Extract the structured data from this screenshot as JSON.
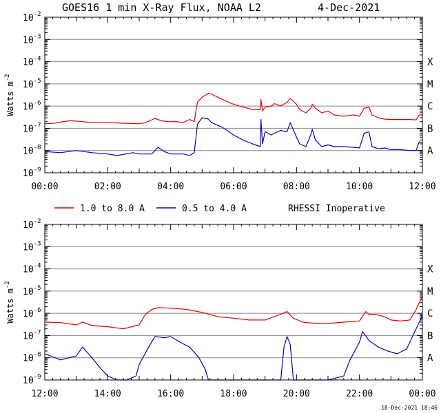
{
  "title": {
    "instrument": "GOES16 1 min X-Ray Flux, NOAA L2",
    "date": "4-Dec-2021"
  },
  "legend": {
    "long_label": "1.0 to 8.0 A",
    "short_label": "0.5 to 4.0 A",
    "note": "RHESSI Inoperative"
  },
  "footer_timestamp": "18-Dec-2021 18:46",
  "colors": {
    "long": "#dd0000",
    "short": "#0000cc",
    "grid": "#888888",
    "axes": "#000000",
    "background": "#ffffff"
  },
  "chart_data": [
    {
      "type": "line",
      "ylabel": "Watts m-2",
      "ylabel_base": "Watts m",
      "ylabel_exp": "-2",
      "y_scale": "log",
      "ylim": [
        1e-09,
        0.01
      ],
      "y_tick_labels": [
        {
          "value": 0.01,
          "base": "10",
          "exp": "-2"
        },
        {
          "value": 0.001,
          "base": "10",
          "exp": "-3"
        },
        {
          "value": 0.0001,
          "base": "10",
          "exp": "-4"
        },
        {
          "value": 1e-05,
          "base": "10",
          "exp": "-5"
        },
        {
          "value": 1e-06,
          "base": "10",
          "exp": "-6"
        },
        {
          "value": 1e-07,
          "base": "10",
          "exp": "-7"
        },
        {
          "value": 1e-08,
          "base": "10",
          "exp": "-8"
        },
        {
          "value": 1e-09,
          "base": "10",
          "exp": "-9"
        }
      ],
      "flare_classes": [
        {
          "label": "X",
          "value": 0.0001
        },
        {
          "label": "M",
          "value": 1e-05
        },
        {
          "label": "C",
          "value": 1e-06
        },
        {
          "label": "B",
          "value": 1e-07
        },
        {
          "label": "A",
          "value": 1e-08
        }
      ],
      "xlim_hours": [
        0,
        12
      ],
      "x_tick_labels": [
        "00:00",
        "02:00",
        "04:00",
        "06:00",
        "08:00",
        "10:00",
        "12:00"
      ],
      "grid": true,
      "series": [
        {
          "name": "1.0 to 8.0 A",
          "color": "#dd0000",
          "x_hours": [
            0,
            0.3,
            0.5,
            0.8,
            1.2,
            1.5,
            2.0,
            2.5,
            3.0,
            3.2,
            3.5,
            3.7,
            3.9,
            4.2,
            4.4,
            4.6,
            4.75,
            4.85,
            5.0,
            5.2,
            5.3,
            5.5,
            5.8,
            6.0,
            6.3,
            6.6,
            6.85,
            6.87,
            6.92,
            7.0,
            7.2,
            7.3,
            7.5,
            7.7,
            7.8,
            8.0,
            8.1,
            8.3,
            8.45,
            8.5,
            8.6,
            8.8,
            9.0,
            9.2,
            9.5,
            9.8,
            10.0,
            10.15,
            10.3,
            10.4,
            10.6,
            10.8,
            11.0,
            11.3,
            11.6,
            11.8,
            11.9,
            12.0
          ],
          "y": [
            1.6e-07,
            1.7e-07,
            1.9e-07,
            2.2e-07,
            2e-07,
            1.8e-07,
            1.8e-07,
            1.7e-07,
            1.6e-07,
            1.8e-07,
            2.8e-07,
            2.2e-07,
            2e-07,
            2e-07,
            1.8e-07,
            2.5e-07,
            2e-07,
            1.5e-06,
            2.5e-06,
            3.8e-06,
            3.5e-06,
            2.5e-06,
            1.6e-06,
            1.2e-06,
            9e-07,
            7e-07,
            7e-07,
            2e-06,
            6e-07,
            9e-07,
            1e-06,
            1.3e-06,
            1e-06,
            1.5e-06,
            2.2e-06,
            1.2e-06,
            7e-07,
            5e-07,
            8e-07,
            1.2e-06,
            8e-07,
            5e-07,
            6e-07,
            4e-07,
            3.5e-07,
            4e-07,
            3.5e-07,
            8e-07,
            9e-07,
            4e-07,
            3e-07,
            2.6e-07,
            2.5e-07,
            2.5e-07,
            2.5e-07,
            2.4e-07,
            4e-07,
            4e-07
          ]
        },
        {
          "name": "0.5 to 4.0 A",
          "color": "#0000cc",
          "x_hours": [
            0,
            0.5,
            1.0,
            1.5,
            2.0,
            2.3,
            2.8,
            3.0,
            3.4,
            3.6,
            3.8,
            4.0,
            4.4,
            4.6,
            4.75,
            4.85,
            5.0,
            5.2,
            5.3,
            5.6,
            5.8,
            6.0,
            6.3,
            6.6,
            6.85,
            6.87,
            6.92,
            7.0,
            7.2,
            7.3,
            7.5,
            7.7,
            7.8,
            8.0,
            8.1,
            8.3,
            8.45,
            8.5,
            8.6,
            8.8,
            9.0,
            9.2,
            9.5,
            9.8,
            10.0,
            10.15,
            10.3,
            10.4,
            10.6,
            10.8,
            11.0,
            11.3,
            11.6,
            11.8,
            11.9,
            12.0
          ],
          "y": [
            9e-09,
            8e-09,
            1e-08,
            8e-09,
            7e-09,
            6e-09,
            8e-09,
            7e-09,
            7e-09,
            1.4e-08,
            9e-09,
            7e-09,
            7e-09,
            6e-09,
            8e-09,
            1.5e-07,
            3e-07,
            2.6e-07,
            1.8e-07,
            1.2e-07,
            8e-08,
            5e-08,
            3e-08,
            2e-08,
            1.5e-08,
            2.5e-07,
            2e-08,
            7e-08,
            5e-08,
            6e-08,
            8e-08,
            7e-08,
            1.8e-07,
            4e-08,
            2e-08,
            1.5e-08,
            5e-08,
            9e-08,
            3e-08,
            1.5e-08,
            1.8e-08,
            1.5e-08,
            1.5e-08,
            1.4e-08,
            1.3e-08,
            6e-08,
            7e-08,
            1.5e-08,
            1.2e-08,
            1.3e-08,
            1.1e-08,
            1.1e-08,
            1e-08,
            1e-08,
            2.5e-08,
            2.2e-08
          ]
        }
      ]
    },
    {
      "type": "line",
      "ylabel": "Watts m-2",
      "ylabel_base": "Watts m",
      "ylabel_exp": "-2",
      "y_scale": "log",
      "ylim": [
        1e-09,
        0.01
      ],
      "y_tick_labels": [
        {
          "value": 0.01,
          "base": "10",
          "exp": "-2"
        },
        {
          "value": 0.001,
          "base": "10",
          "exp": "-3"
        },
        {
          "value": 0.0001,
          "base": "10",
          "exp": "-4"
        },
        {
          "value": 1e-05,
          "base": "10",
          "exp": "-5"
        },
        {
          "value": 1e-06,
          "base": "10",
          "exp": "-6"
        },
        {
          "value": 1e-07,
          "base": "10",
          "exp": "-7"
        },
        {
          "value": 1e-08,
          "base": "10",
          "exp": "-8"
        },
        {
          "value": 1e-09,
          "base": "10",
          "exp": "-9"
        }
      ],
      "flare_classes": [
        {
          "label": "X",
          "value": 0.0001
        },
        {
          "label": "M",
          "value": 1e-05
        },
        {
          "label": "C",
          "value": 1e-06
        },
        {
          "label": "B",
          "value": 1e-07
        },
        {
          "label": "A",
          "value": 1e-08
        }
      ],
      "xlim_hours": [
        12,
        24
      ],
      "x_tick_labels": [
        "12:00",
        "14:00",
        "16:00",
        "18:00",
        "20:00",
        "22:00",
        "00:00"
      ],
      "grid": true,
      "series": [
        {
          "name": "1.0 to 8.0 A",
          "color": "#dd0000",
          "x_hours": [
            12,
            12.5,
            13.0,
            13.2,
            13.5,
            14.0,
            14.5,
            15.0,
            15.2,
            15.4,
            15.6,
            16.0,
            16.5,
            17.0,
            17.5,
            18.0,
            18.5,
            19.0,
            19.5,
            19.7,
            19.9,
            20.2,
            20.6,
            21.0,
            21.5,
            22.0,
            22.2,
            22.3,
            22.5,
            22.8,
            23.0,
            23.3,
            23.6,
            23.8,
            24.0
          ],
          "y": [
            4e-07,
            3.8e-07,
            3e-07,
            4e-07,
            2.8e-07,
            2.5e-07,
            2e-07,
            3e-07,
            9e-07,
            1.5e-06,
            1.8e-06,
            1.7e-06,
            1.5e-06,
            1.1e-06,
            7e-07,
            6e-07,
            5e-07,
            5e-07,
            9e-07,
            1.2e-06,
            6e-07,
            4e-07,
            3.5e-07,
            3.5e-07,
            4e-07,
            4.5e-07,
            1.2e-06,
            9e-07,
            9e-07,
            7e-07,
            5e-07,
            4.5e-07,
            5e-07,
            1.5e-06,
            6e-06
          ]
        },
        {
          "name": "0.5 to 4.0 A",
          "color": "#0000cc",
          "x_hours": [
            12,
            12.5,
            13.0,
            13.2,
            13.5,
            13.8,
            14.0,
            14.3,
            14.6,
            14.9,
            15.0,
            15.3,
            15.5,
            15.8,
            16.0,
            16.3,
            16.6,
            16.9,
            17.1,
            17.2,
            18.0,
            19.0,
            19.5,
            19.6,
            19.7,
            19.8,
            19.9,
            20.0,
            21.0,
            21.5,
            21.7,
            22.0,
            22.1,
            22.3,
            22.6,
            22.9,
            23.2,
            23.5,
            23.8,
            24.0
          ],
          "y": [
            1.5e-08,
            8e-09,
            1.2e-08,
            3e-08,
            1e-08,
            3e-09,
            1.5e-09,
            1e-09,
            1e-09,
            1.5e-09,
            5e-09,
            3e-08,
            9e-08,
            8e-08,
            9e-08,
            5e-08,
            3e-08,
            1e-08,
            3e-09,
            1e-09,
            1e-09,
            1e-09,
            1e-09,
            3e-08,
            9e-08,
            4e-08,
            1e-09,
            1e-09,
            1e-09,
            1.5e-09,
            8e-09,
            5e-08,
            1.5e-07,
            6e-08,
            3e-08,
            2e-08,
            1.5e-08,
            2.5e-08,
            2e-07,
            8e-07
          ]
        }
      ]
    }
  ]
}
